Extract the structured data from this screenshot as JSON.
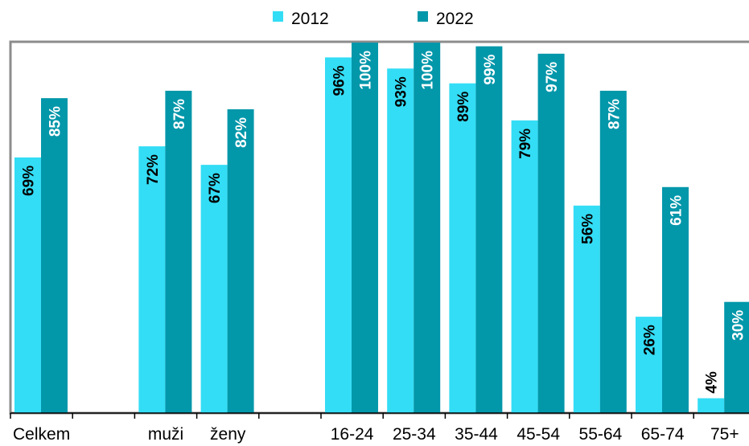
{
  "chart_data": {
    "type": "bar",
    "title": "",
    "xlabel": "",
    "ylabel": "",
    "ylim": [
      0,
      100
    ],
    "grid": false,
    "legend_position": "top-center",
    "categories": [
      "Celkem",
      "",
      "muži",
      "ženy",
      "",
      "16-24",
      "25-34",
      "35-44",
      "45-54",
      "55-64",
      "65-74",
      "75+"
    ],
    "series": [
      {
        "name": "2012",
        "color": "#33ddf5",
        "values": [
          69,
          null,
          72,
          67,
          null,
          96,
          93,
          89,
          79,
          56,
          26,
          4
        ],
        "labels": [
          "69%",
          "",
          "72%",
          "67%",
          "",
          "96%",
          "93%",
          "89%",
          "79%",
          "56%",
          "26%",
          "4%"
        ]
      },
      {
        "name": "2022",
        "color": "#0397aa",
        "values": [
          85,
          null,
          87,
          82,
          null,
          100,
          100,
          99,
          97,
          87,
          61,
          30
        ],
        "labels": [
          "85%",
          "",
          "87%",
          "82%",
          "",
          "100%",
          "100%",
          "99%",
          "97%",
          "87%",
          "61%",
          "30%"
        ]
      }
    ]
  }
}
